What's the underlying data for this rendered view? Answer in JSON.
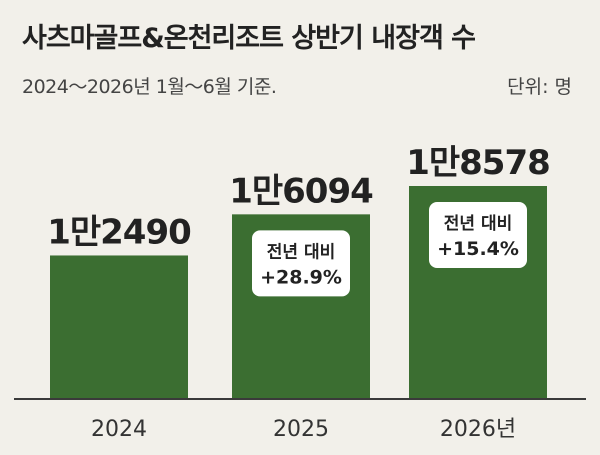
{
  "title": "사츠마골프&온천리조트 상반기 내장객 수",
  "subtitle": "2024～2026년 1월～6월 기준.",
  "unit": "단위: 명",
  "colors": {
    "bar": "#3b6e31",
    "text": "#222222",
    "callout_bg": "#ffffff"
  },
  "chart_data": {
    "type": "bar",
    "categories": [
      "2024",
      "2025",
      "2026년"
    ],
    "values": [
      12490,
      16094,
      18578
    ],
    "value_labels": [
      "1만2490",
      "1만6094",
      "1만8578"
    ],
    "annotations": [
      null,
      {
        "line1": "전년 대비",
        "line2": "+28.9%"
      },
      {
        "line1": "전년 대비",
        "line2": "+15.4%"
      }
    ],
    "title": "사츠마골프&온천리조트 상반기 내장객 수",
    "xlabel": "",
    "ylabel": "",
    "grid": false,
    "legend": "none"
  }
}
